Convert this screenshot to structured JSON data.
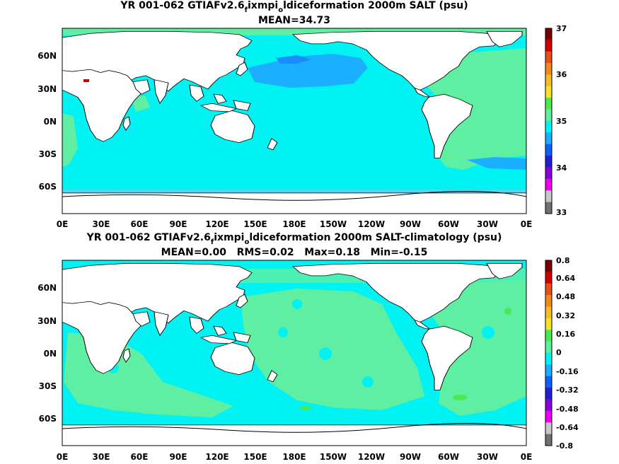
{
  "panels": [
    {
      "title_prefix": "YR 001-062 GTIAFv2.6",
      "title_sub1": "f",
      "title_mid": "ixmpi",
      "title_sub2": "o",
      "title_suffix": "ldiceformation 2000m SALT (psu)",
      "stats": "MEAN=34.73",
      "lat_labels": [
        "60N",
        "30N",
        "0N",
        "30S",
        "60S"
      ],
      "lon_labels": [
        "0E",
        "30E",
        "60E",
        "90E",
        "120E",
        "150E",
        "180E",
        "150W",
        "120W",
        "90W",
        "60W",
        "30W",
        "0E"
      ],
      "colorbar_labels": [
        "37",
        "36",
        "35",
        "34",
        "33"
      ],
      "colorbar_colors": [
        "#7a0000",
        "#d10000",
        "#e8501a",
        "#f08a1e",
        "#f7bc2a",
        "#f5e02a",
        "#4de84d",
        "#5fefa2",
        "#00f2f2",
        "#1ab0ff",
        "#1060ff",
        "#2020d0",
        "#8a00d8",
        "#ee00ee",
        "#c8c8c8",
        "#707070"
      ],
      "ocean_base_color": "#00f2f2",
      "pacific_north_color": "#1ab0ff",
      "atlantic_color": "#5fefa2"
    },
    {
      "title_prefix": "YR 001-062 GTIAFv2.6",
      "title_sub1": "f",
      "title_mid": "ixmpi",
      "title_sub2": "o",
      "title_suffix": "ldiceformation 2000m SALT-climatology (psu)",
      "stats": "MEAN=0.00   RMS=0.02   Max=0.18   Min=-0.15",
      "lat_labels": [
        "60N",
        "30N",
        "0N",
        "30S",
        "60S"
      ],
      "lon_labels": [
        "0E",
        "30E",
        "60E",
        "90E",
        "120E",
        "150E",
        "180E",
        "150W",
        "120W",
        "90W",
        "60W",
        "30W",
        "0E"
      ],
      "colorbar_labels": [
        "0.8",
        "0.64",
        "0.48",
        "0.32",
        "0.16",
        "0",
        "-0.16",
        "-0.32",
        "-0.48",
        "-0.64",
        "-0.8"
      ],
      "colorbar_colors": [
        "#7a0000",
        "#d10000",
        "#e8501a",
        "#f08a1e",
        "#f7bc2a",
        "#f5e02a",
        "#4de84d",
        "#5fefa2",
        "#00f2f2",
        "#1ab0ff",
        "#1060ff",
        "#2020d0",
        "#8a00d8",
        "#ee00ee",
        "#c8c8c8",
        "#707070"
      ],
      "ocean_base_color": "#00f2f2",
      "pacific_north_color": "#5fefa2",
      "atlantic_color": "#5fefa2"
    }
  ]
}
